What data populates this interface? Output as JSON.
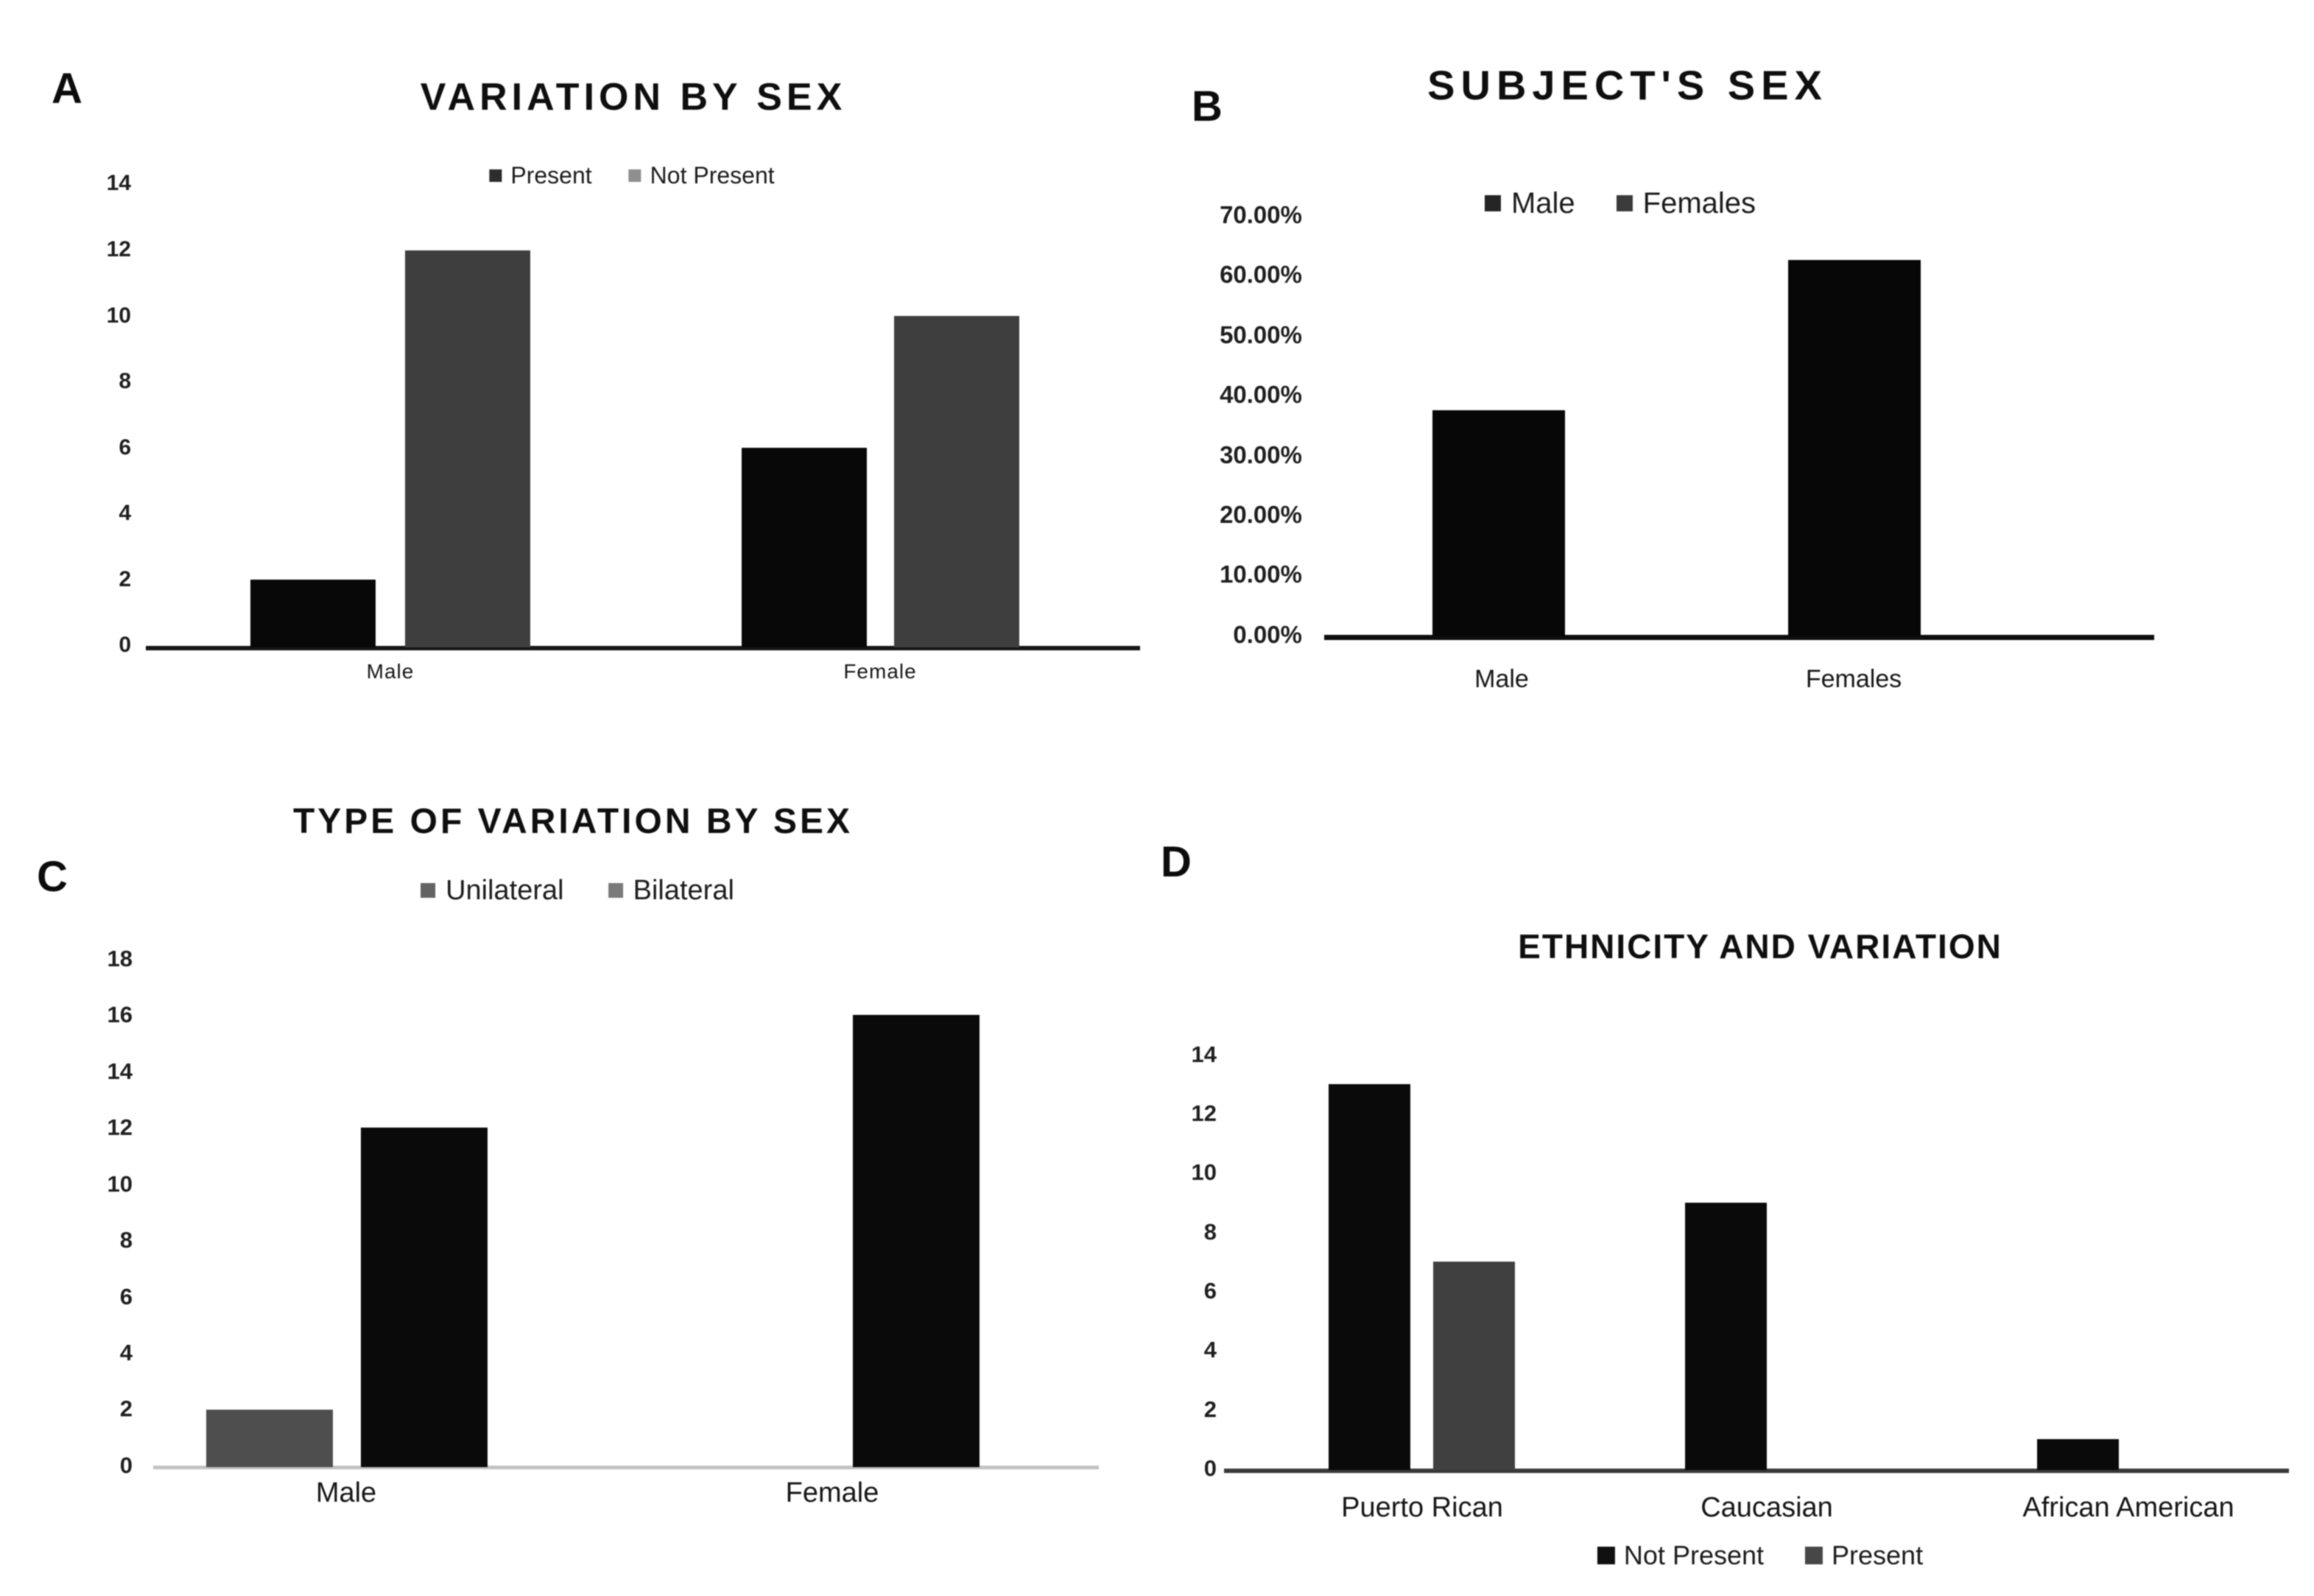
{
  "figure": {
    "background": "#ffffff"
  },
  "chart_data": [
    {
      "id": "A",
      "panel_label": "A",
      "type": "bar",
      "title": "VARIATION BY SEX",
      "legend_position": "top",
      "legend": [
        {
          "label": "Present",
          "color": "#2d2d2d"
        },
        {
          "label": "Not Present",
          "color": "#8f8f8f"
        }
      ],
      "categories": [
        "Male",
        "Female"
      ],
      "groups": [
        {
          "label": "Male",
          "bars": [
            {
              "series": "Present",
              "value": 2,
              "color": "#080808"
            },
            {
              "series": "Not Present",
              "value": 12,
              "color": "#3e3e3e"
            }
          ]
        },
        {
          "label": "Female",
          "bars": [
            {
              "series": "Present",
              "value": 6,
              "color": "#080808"
            },
            {
              "series": "Not Present",
              "value": 10,
              "color": "#3e3e3e"
            }
          ]
        }
      ],
      "y_axis": {
        "min": 0,
        "max": 14,
        "step": 2,
        "format": "int"
      },
      "y_tick_labels": [
        "0",
        "2",
        "4",
        "6",
        "8",
        "10",
        "12",
        "14"
      ],
      "grid": false
    },
    {
      "id": "B",
      "panel_label": "B",
      "type": "bar",
      "title": "SUBJECT'S SEX",
      "legend_position": "top",
      "legend": [
        {
          "label": "Male",
          "color": "#252525"
        },
        {
          "label": "Females",
          "color": "#3b3b3b"
        }
      ],
      "categories": [
        "Male",
        "Females"
      ],
      "groups": [
        {
          "label": "Male",
          "bars": [
            {
              "series": "Male",
              "value": 37.5,
              "color": "#070707"
            }
          ]
        },
        {
          "label": "Females",
          "bars": [
            {
              "series": "Females",
              "value": 62.5,
              "color": "#070707"
            }
          ]
        }
      ],
      "y_axis": {
        "min": 0,
        "max": 70,
        "step": 10,
        "format": "percent2"
      },
      "y_tick_labels": [
        "0.00%",
        "10.00%",
        "20.00%",
        "30.00%",
        "40.00%",
        "50.00%",
        "60.00%",
        "70.00%"
      ],
      "grid": false
    },
    {
      "id": "C",
      "panel_label": "C",
      "type": "bar",
      "title": "TYPE OF VARIATION BY SEX",
      "legend_position": "top",
      "legend": [
        {
          "label": "Unilateral",
          "color": "#636363"
        },
        {
          "label": "Bilateral",
          "color": "#7a7a7a"
        }
      ],
      "categories": [
        "Male",
        "Female"
      ],
      "groups": [
        {
          "label": "Male",
          "bars": [
            {
              "series": "Unilateral",
              "value": 2,
              "color": "#4e4e4e"
            },
            {
              "series": "Bilateral",
              "value": 12,
              "color": "#0a0a0a"
            }
          ]
        },
        {
          "label": "Female",
          "bars": [
            {
              "series": "Unilateral",
              "value": 0,
              "color": "#4e4e4e"
            },
            {
              "series": "Bilateral",
              "value": 16,
              "color": "#0a0a0a"
            }
          ]
        }
      ],
      "y_axis": {
        "min": 0,
        "max": 18,
        "step": 2,
        "format": "int"
      },
      "y_tick_labels": [
        "0",
        "2",
        "4",
        "6",
        "8",
        "10",
        "12",
        "14",
        "16",
        "18"
      ],
      "grid": false
    },
    {
      "id": "D",
      "panel_label": "D",
      "type": "bar",
      "title": "ETHNICITY AND VARIATION",
      "legend_position": "bottom",
      "legend": [
        {
          "label": "Not Present",
          "color": "#101010"
        },
        {
          "label": "Present",
          "color": "#474747"
        }
      ],
      "categories": [
        "Puerto Rican",
        "Caucasian",
        "African American"
      ],
      "groups": [
        {
          "label": "Puerto Rican",
          "bars": [
            {
              "series": "Not Present",
              "value": 13,
              "color": "#0a0a0a"
            },
            {
              "series": "Present",
              "value": 7,
              "color": "#404040"
            }
          ]
        },
        {
          "label": "Caucasian",
          "bars": [
            {
              "series": "Not Present",
              "value": 9,
              "color": "#0a0a0a"
            },
            {
              "series": "Present",
              "value": 0,
              "color": "#404040"
            }
          ]
        },
        {
          "label": "African American",
          "bars": [
            {
              "series": "Not Present",
              "value": 1,
              "color": "#0a0a0a"
            },
            {
              "series": "Present",
              "value": 0,
              "color": "#404040"
            }
          ]
        }
      ],
      "y_axis": {
        "min": 0,
        "max": 14,
        "step": 2,
        "format": "int"
      },
      "y_tick_labels": [
        "0",
        "2",
        "4",
        "6",
        "8",
        "10",
        "12",
        "14"
      ],
      "grid": false
    }
  ]
}
